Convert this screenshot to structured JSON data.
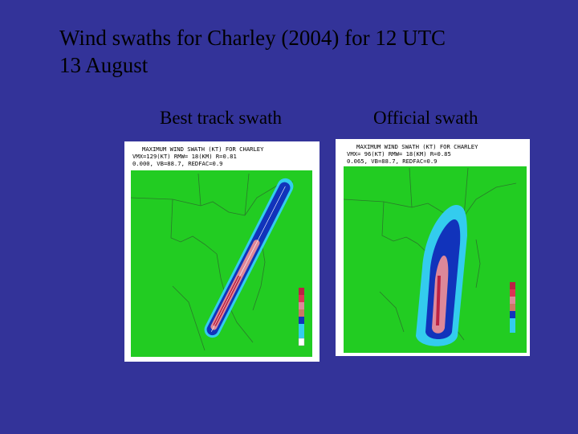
{
  "slide": {
    "title_line1": "Wind swaths for Charley (2004) for 12 UTC",
    "title_line2": "13 August",
    "background_color": "#333399"
  },
  "panels": [
    {
      "caption": "Best track swath",
      "header_line1": "MAXIMUM WIND SWATH (KT) FOR CHARLEY",
      "header_line2": "VMX=129(KT) RMW= 18(KM) R=0.81",
      "header_line3": "0.000, VB=88.7, REDFAC=0.9"
    },
    {
      "caption": "Official swath",
      "header_line1": "MAXIMUM WIND SWATH (KT) FOR CHARLEY",
      "header_line2": "VMX= 96(KT) RMW= 18(KM) R=0.85",
      "header_line3": "0.065, VB=88.7, REDFAC=0.9"
    }
  ],
  "colors": {
    "land": "#22cc22",
    "swath_cyan": "#33ccee",
    "swath_blue": "#1133bb",
    "swath_pink": "#dd8899",
    "swath_red": "#bb2244"
  }
}
